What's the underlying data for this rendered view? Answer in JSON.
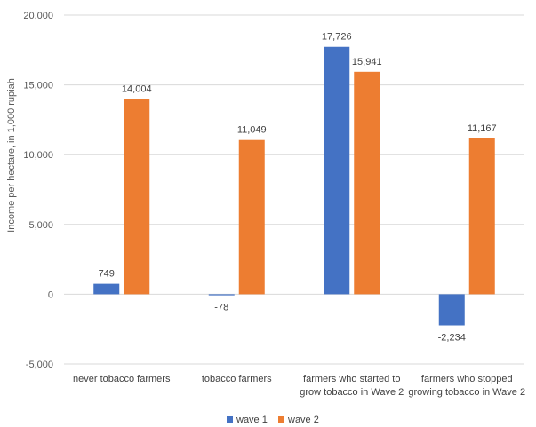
{
  "chart_data": {
    "type": "bar",
    "title": "",
    "xlabel": "",
    "ylabel": "Income per hectare, in 1,000 rupiah",
    "ylim": [
      -5000,
      20000
    ],
    "yticks": [
      -5000,
      0,
      5000,
      10000,
      15000,
      20000
    ],
    "ytick_labels": [
      "-5,000",
      "0",
      "5,000",
      "10,000",
      "15,000",
      "20,000"
    ],
    "grid": true,
    "legend": "bottom",
    "categories": [
      [
        "never tobacco farmers"
      ],
      [
        "tobacco farmers"
      ],
      [
        "farmers who started to",
        "grow tobacco in Wave 2"
      ],
      [
        "farmers who stopped",
        "growing tobacco in Wave 2"
      ]
    ],
    "series": [
      {
        "name": "wave 1",
        "color": "#4472C4",
        "values": [
          749,
          -78,
          17726,
          -2234
        ],
        "labels": [
          "749",
          "-78",
          "17,726",
          "-2,234"
        ]
      },
      {
        "name": "wave 2",
        "color": "#ED7D31",
        "values": [
          14004,
          11049,
          15941,
          11167
        ],
        "labels": [
          "14,004",
          "11,049",
          "15,941",
          "11,167"
        ]
      }
    ]
  }
}
